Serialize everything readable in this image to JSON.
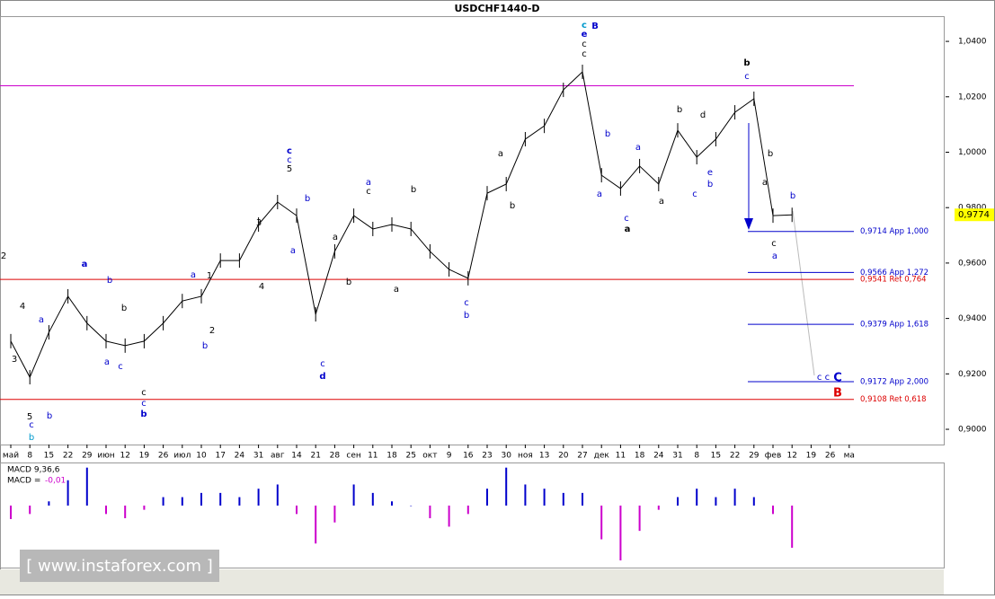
{
  "chart_data": {
    "type": "ohlc",
    "title": "USDCHF1440-D",
    "categories": [
      "май",
      "8",
      "15",
      "22",
      "29",
      "июн",
      "12",
      "19",
      "26",
      "июл",
      "10",
      "17",
      "24",
      "31",
      "авг",
      "14",
      "21",
      "28",
      "сен",
      "11",
      "18",
      "25",
      "окт",
      "9",
      "16",
      "23",
      "30",
      "ноя",
      "13",
      "20",
      "27",
      "дек",
      "11",
      "18",
      "24",
      "31",
      "8",
      "15",
      "22",
      "29",
      "фев",
      "12",
      "19",
      "26",
      "ма"
    ],
    "series": [
      {
        "name": "USDCHF",
        "color": "#000000",
        "values": [
          0.9318,
          0.9188,
          0.935,
          0.948,
          0.9383,
          0.9318,
          0.9302,
          0.9318,
          0.9383,
          0.9463,
          0.948,
          0.9609,
          0.9609,
          0.9739,
          0.982,
          0.9771,
          0.9415,
          0.9642,
          0.9771,
          0.9723,
          0.9739,
          0.9723,
          0.9642,
          0.9577,
          0.9545,
          0.9852,
          0.9885,
          1.0047,
          1.0095,
          1.0225,
          1.029,
          0.9917,
          0.9869,
          0.995,
          0.9885,
          1.0079,
          0.9982,
          1.0047,
          1.0144,
          1.0193,
          0.9771,
          0.9774,
          null,
          null,
          null
        ]
      }
    ],
    "ylim": [
      0.8945,
      1.0491
    ],
    "yticks": [
      {
        "value": 1.04,
        "label": "1,0400"
      },
      {
        "value": 1.02,
        "label": "1,0200"
      },
      {
        "value": 1.0,
        "label": "1,0000"
      },
      {
        "value": 0.98,
        "label": "0,9800"
      },
      {
        "value": 0.96,
        "label": "0,9600"
      },
      {
        "value": 0.94,
        "label": "0,9400"
      },
      {
        "value": 0.92,
        "label": "0,9200"
      },
      {
        "value": 0.9,
        "label": "0,9000"
      }
    ],
    "current_price": {
      "value": 0.9774,
      "label": "0,9774"
    },
    "levels": [
      {
        "value": 1.024,
        "color": "#cc00cc"
      },
      {
        "value": 0.9541,
        "label": "0,9541 Ret 0,764",
        "color": "#dd0000"
      },
      {
        "value": 0.9108,
        "label": "0,9108 Ret 0,618",
        "color": "#dd0000"
      },
      {
        "value": 0.9714,
        "label": "0,9714 App 1,000",
        "color": "#0000cc"
      },
      {
        "value": 0.9566,
        "label": "0,9566 App 1,272",
        "color": "#0000cc"
      },
      {
        "value": 0.9379,
        "label": "0,9379 App 1,618",
        "color": "#0000cc"
      },
      {
        "value": 0.9172,
        "label": "0,9172 App 2,000",
        "color": "#0000cc"
      }
    ],
    "annotations": [
      {
        "text": "2",
        "color": "#000"
      },
      {
        "text": "4",
        "color": "#000"
      },
      {
        "text": "3",
        "color": "#000"
      },
      {
        "text": "5",
        "color": "#000"
      },
      {
        "text": "c",
        "color": "#0000cc"
      },
      {
        "text": "b",
        "color": "#0099cc"
      },
      {
        "text": "a",
        "color": "#0000cc"
      },
      {
        "text": "b",
        "color": "#0000cc"
      },
      {
        "text": "a",
        "color": "#0000cc"
      },
      {
        "text": "b",
        "color": "#0000cc"
      },
      {
        "text": "b",
        "color": "#000"
      },
      {
        "text": "a",
        "color": "#0000cc"
      },
      {
        "text": "c",
        "color": "#0000cc"
      },
      {
        "text": "c",
        "color": "#000"
      },
      {
        "text": "c",
        "color": "#0000cc"
      },
      {
        "text": "b",
        "color": "#0000cc"
      },
      {
        "text": "a",
        "color": "#0000cc"
      },
      {
        "text": "1",
        "color": "#000"
      },
      {
        "text": "2",
        "color": "#000"
      },
      {
        "text": "b",
        "color": "#0000cc"
      },
      {
        "text": "3",
        "color": "#000"
      },
      {
        "text": "4",
        "color": "#000"
      },
      {
        "text": "c",
        "color": "#0000cc"
      },
      {
        "text": "c",
        "color": "#0000cc"
      },
      {
        "text": "5",
        "color": "#000"
      },
      {
        "text": "b",
        "color": "#0000cc"
      },
      {
        "text": "a",
        "color": "#0000cc"
      },
      {
        "text": "c",
        "color": "#0000cc"
      },
      {
        "text": "d",
        "color": "#0000cc"
      },
      {
        "text": "a",
        "color": "#000"
      },
      {
        "text": "b",
        "color": "#000"
      },
      {
        "text": "a",
        "color": "#0000cc"
      },
      {
        "text": "c",
        "color": "#000"
      },
      {
        "text": "b",
        "color": "#000"
      },
      {
        "text": "a",
        "color": "#000"
      },
      {
        "text": "c",
        "color": "#0000cc"
      },
      {
        "text": "b",
        "color": "#0000cc"
      },
      {
        "text": "a",
        "color": "#000"
      },
      {
        "text": "b",
        "color": "#000"
      },
      {
        "text": "c",
        "color": "#0099cc"
      },
      {
        "text": "B",
        "color": "#0000cc"
      },
      {
        "text": "e",
        "color": "#0000cc"
      },
      {
        "text": "c",
        "color": "#000"
      },
      {
        "text": "c",
        "color": "#000"
      },
      {
        "text": "b",
        "color": "#0000cc"
      },
      {
        "text": "a",
        "color": "#0000cc"
      },
      {
        "text": "a",
        "color": "#0000cc"
      },
      {
        "text": "c",
        "color": "#0000cc"
      },
      {
        "text": "a",
        "color": "#000"
      },
      {
        "text": "b",
        "color": "#000"
      },
      {
        "text": "d",
        "color": "#000"
      },
      {
        "text": "c",
        "color": "#0000cc"
      },
      {
        "text": "a",
        "color": "#000"
      },
      {
        "text": "e",
        "color": "#0000cc"
      },
      {
        "text": "b",
        "color": "#0000cc"
      },
      {
        "text": "b",
        "color": "#000"
      },
      {
        "text": "c",
        "color": "#0000cc"
      },
      {
        "text": "b",
        "color": "#000"
      },
      {
        "text": "a",
        "color": "#000"
      },
      {
        "text": "c",
        "color": "#000"
      },
      {
        "text": "a",
        "color": "#0000cc"
      },
      {
        "text": "b",
        "color": "#0000cc"
      },
      {
        "text": "c c",
        "color": "#0000cc"
      },
      {
        "text": "C",
        "color": "#0000cc"
      },
      {
        "text": "B",
        "color": "#dd0000"
      }
    ],
    "macd": {
      "label": "MACD 9,36,6",
      "value_label_prefix": "MACD = ",
      "value_label": "-0,01",
      "ylim": [
        -0.0147,
        0.01
      ],
      "positive_color": "#0000cc",
      "negative_color": "#cc00cc",
      "values": [
        -0.0032,
        -0.002,
        0.001,
        0.006,
        0.009,
        -0.002,
        -0.003,
        -0.001,
        0.002,
        0.002,
        0.003,
        0.003,
        0.002,
        0.004,
        0.005,
        -0.002,
        -0.009,
        -0.004,
        0.005,
        0.003,
        0.001,
        0.0,
        -0.003,
        -0.005,
        -0.002,
        0.004,
        0.009,
        0.005,
        0.004,
        0.003,
        0.003,
        -0.008,
        -0.013,
        -0.006,
        -0.001,
        0.002,
        0.004,
        0.002,
        0.004,
        0.002,
        -0.002,
        -0.01,
        null,
        null,
        null
      ]
    },
    "watermark": "[ www.instaforex.com ]"
  }
}
